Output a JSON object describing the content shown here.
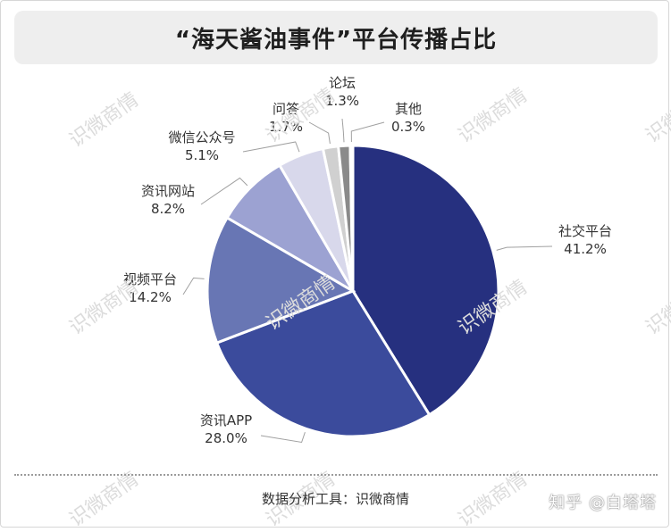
{
  "title": "“海天酱油事件”平台传播占比",
  "footer": {
    "source": "数据分析工具：识微商情",
    "credit": "知乎 @白塔塔"
  },
  "watermark_text": "识微商情",
  "chart_data": {
    "type": "pie",
    "categories": [
      "社交平台",
      "资讯APP",
      "视频平台",
      "资讯网站",
      "微信公众号",
      "问答",
      "论坛",
      "其他"
    ],
    "values": [
      41.2,
      28.0,
      14.2,
      8.2,
      5.1,
      1.7,
      1.3,
      0.3
    ],
    "value_labels": [
      "41.2%",
      "28.0%",
      "14.2%",
      "8.2%",
      "5.1%",
      "1.7%",
      "1.3%",
      "0.3%"
    ],
    "colors": [
      "#26307f",
      "#3b4b9c",
      "#6876b4",
      "#9ca2d2",
      "#d8d8eb",
      "#d0d0d0",
      "#8a8a8a",
      "#ffffff"
    ],
    "start_angle": "12 o'clock",
    "direction": "clockwise"
  }
}
